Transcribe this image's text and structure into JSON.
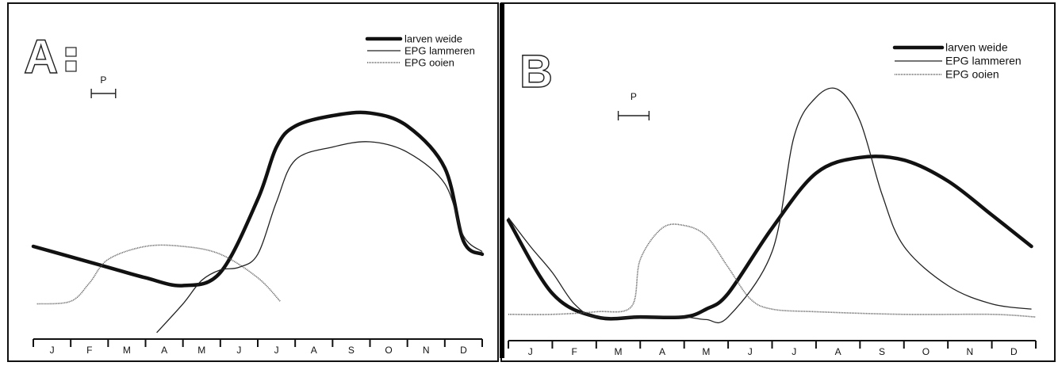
{
  "chart_data": [
    {
      "panel": "A",
      "type": "line",
      "x_unit": "month",
      "x": [
        "J",
        "F",
        "M",
        "A",
        "M",
        "J",
        "J",
        "A",
        "S",
        "O",
        "N",
        "D"
      ],
      "legend": [
        "larven weide",
        "EPG lammeren",
        "EPG ooien"
      ],
      "legend_position": "top-right",
      "grid": false,
      "bar_label": "P",
      "bar_range": [
        1.55,
        2.2
      ],
      "series": [
        {
          "name": "larven weide",
          "style": "thick",
          "points": [
            [
              0,
              0.3
            ],
            [
              1,
              0.26
            ],
            [
              2,
              0.22
            ],
            [
              3,
              0.18
            ],
            [
              4,
              0.15
            ],
            [
              5,
              0.2
            ],
            [
              6,
              0.48
            ],
            [
              6.5,
              0.68
            ],
            [
              7,
              0.76
            ],
            [
              8,
              0.8
            ],
            [
              9,
              0.81
            ],
            [
              10,
              0.76
            ],
            [
              11,
              0.6
            ],
            [
              11.5,
              0.32
            ],
            [
              12,
              0.27
            ]
          ]
        },
        {
          "name": "EPG lammeren",
          "style": "thin",
          "points": [
            [
              3.3,
              -0.03
            ],
            [
              4,
              0.08
            ],
            [
              4.5,
              0.17
            ],
            [
              5,
              0.21
            ],
            [
              5.5,
              0.22
            ],
            [
              6,
              0.27
            ],
            [
              6.5,
              0.47
            ],
            [
              7,
              0.63
            ],
            [
              8,
              0.68
            ],
            [
              9,
              0.7
            ],
            [
              10,
              0.66
            ],
            [
              11,
              0.54
            ],
            [
              11.5,
              0.34
            ],
            [
              12,
              0.28
            ]
          ]
        },
        {
          "name": "EPG ooien",
          "style": "dotted",
          "points": [
            [
              0.1,
              0.08
            ],
            [
              1,
              0.09
            ],
            [
              1.5,
              0.16
            ],
            [
              2,
              0.25
            ],
            [
              3,
              0.3
            ],
            [
              4,
              0.3
            ],
            [
              5,
              0.27
            ],
            [
              6,
              0.18
            ],
            [
              6.6,
              0.09
            ]
          ]
        }
      ]
    },
    {
      "panel": "B",
      "type": "line",
      "x_unit": "month",
      "x": [
        "J",
        "F",
        "M",
        "A",
        "M",
        "J",
        "J",
        "A",
        "S",
        "O",
        "N",
        "D"
      ],
      "legend": [
        "larven weide",
        "EPG lammeren",
        "EPG ooien"
      ],
      "legend_position": "top-right",
      "grid": false,
      "bar_label": "P",
      "bar_range": [
        2.5,
        3.2
      ],
      "series": [
        {
          "name": "larven weide",
          "style": "thick",
          "points": [
            [
              0,
              0.4
            ],
            [
              1,
              0.12
            ],
            [
              2,
              0.03
            ],
            [
              3,
              0.03
            ],
            [
              4,
              0.03
            ],
            [
              4.5,
              0.06
            ],
            [
              5,
              0.12
            ],
            [
              6,
              0.37
            ],
            [
              7,
              0.58
            ],
            [
              8,
              0.64
            ],
            [
              9,
              0.63
            ],
            [
              10,
              0.55
            ],
            [
              11,
              0.42
            ],
            [
              11.9,
              0.3
            ]
          ]
        },
        {
          "name": "EPG lammeren",
          "style": "thin",
          "points": [
            [
              0,
              0.41
            ],
            [
              0.5,
              0.3
            ],
            [
              1,
              0.2
            ],
            [
              1.5,
              0.08
            ],
            [
              2,
              0.03
            ],
            [
              3,
              0.03
            ],
            [
              4,
              0.03
            ],
            [
              4.5,
              0.02
            ],
            [
              5,
              0.03
            ],
            [
              6,
              0.28
            ],
            [
              6.5,
              0.72
            ],
            [
              7,
              0.87
            ],
            [
              7.5,
              0.9
            ],
            [
              8,
              0.78
            ],
            [
              8.5,
              0.5
            ],
            [
              9,
              0.3
            ],
            [
              10,
              0.15
            ],
            [
              11,
              0.08
            ],
            [
              11.9,
              0.06
            ]
          ]
        },
        {
          "name": "EPG ooien",
          "style": "dotted",
          "points": [
            [
              0,
              0.04
            ],
            [
              1,
              0.04
            ],
            [
              2,
              0.05
            ],
            [
              2.8,
              0.07
            ],
            [
              3,
              0.25
            ],
            [
              3.5,
              0.37
            ],
            [
              4,
              0.38
            ],
            [
              4.5,
              0.34
            ],
            [
              5,
              0.22
            ],
            [
              5.5,
              0.1
            ],
            [
              6,
              0.06
            ],
            [
              7,
              0.05
            ],
            [
              9,
              0.04
            ],
            [
              11,
              0.04
            ],
            [
              12,
              0.03
            ]
          ]
        }
      ]
    }
  ]
}
